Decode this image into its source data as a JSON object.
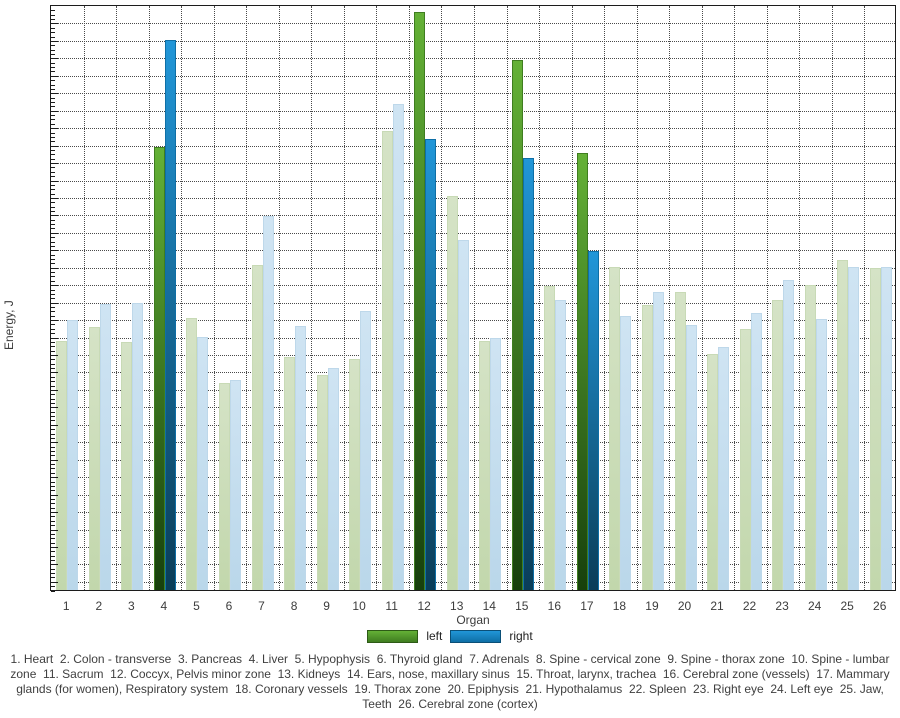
{
  "y_axis": {
    "label": "Energy, J",
    "numeric_ticks_shown": false
  },
  "x_axis": {
    "label": "Organ"
  },
  "legend": {
    "items": [
      {
        "label": "left",
        "series": "left"
      },
      {
        "label": "right",
        "series": "right"
      }
    ]
  },
  "caption": {
    "lines": [
      "1. Heart  2. Colon - transverse  3. Pancreas  4. Liver  5. Hypophysis  6. Thyroid gland  7. Adrenals  8. Spine - cervical zone  9. Spine - thorax zone  10. Spine - lumbar",
      "zone  11. Sacrum  12. Coccyx, Pelvis minor zone  13. Kidneys  14. Ears, nose, maxillary sinus  15. Throat, larynx, trachea  16. Cerebral zone (vessels)  17. Mammary",
      "glands (for women), Respiratory system  18. Coronary vessels  19. Thorax zone  20. Epiphysis  21. Hypothalamus  22. Spleen  23. Right eye  24. Left eye  25. Jaw,",
      "Teeth  26. Cerebral zone (cortex)"
    ]
  },
  "colors": {
    "left_active_top": "#64b136",
    "left_active_bottom": "#17400c",
    "left_active_border": "#3f7d20",
    "right_active_top": "#2196d8",
    "right_active_bottom": "#0a3d58",
    "right_active_border": "#0e6fa6",
    "left_faded_top": "#d5e3c6",
    "left_faded_bottom": "#c2d7ac",
    "left_faded_border": "#c8dab6",
    "right_faded_top": "#cfe4f3",
    "right_faded_bottom": "#bad7ea",
    "right_faded_border": "#bed8ea",
    "grid": "#4a4a4a",
    "axis": "#1c1c1c",
    "text": "#3c3c3c"
  },
  "chart_data": {
    "type": "bar",
    "title": "",
    "xlabel": "Organ",
    "ylabel": "Energy, J",
    "grid": true,
    "legend_position": "bottom",
    "ylim": [
      0,
      100
    ],
    "y_scale_note": "y-axis shows only unlabeled ticks; values are percent of full plot height",
    "categories": [
      "1",
      "2",
      "3",
      "4",
      "5",
      "6",
      "7",
      "8",
      "9",
      "10",
      "11",
      "12",
      "13",
      "14",
      "15",
      "16",
      "17",
      "18",
      "19",
      "20",
      "21",
      "22",
      "23",
      "24",
      "25",
      "26"
    ],
    "highlighted_categories": [
      "4",
      "12",
      "15",
      "17"
    ],
    "series": [
      {
        "name": "left",
        "values": [
          42.5,
          44.9,
          42.3,
          75.6,
          46.4,
          35.3,
          55.4,
          39.8,
          36.7,
          39.4,
          78.3,
          98.6,
          67.2,
          42.5,
          90.4,
          51.9,
          74.6,
          55.1,
          48.6,
          50.9,
          40.3,
          44.5,
          49.5,
          52.0,
          56.3,
          54.9
        ]
      },
      {
        "name": "right",
        "values": [
          46.1,
          48.8,
          49.0,
          93.9,
          43.2,
          35.8,
          63.8,
          45.1,
          37.9,
          47.6,
          82.9,
          77.0,
          59.7,
          43.0,
          73.7,
          49.5,
          57.8,
          46.8,
          50.9,
          45.2,
          41.5,
          47.3,
          52.9,
          46.2,
          55.1,
          55.1
        ]
      }
    ]
  }
}
